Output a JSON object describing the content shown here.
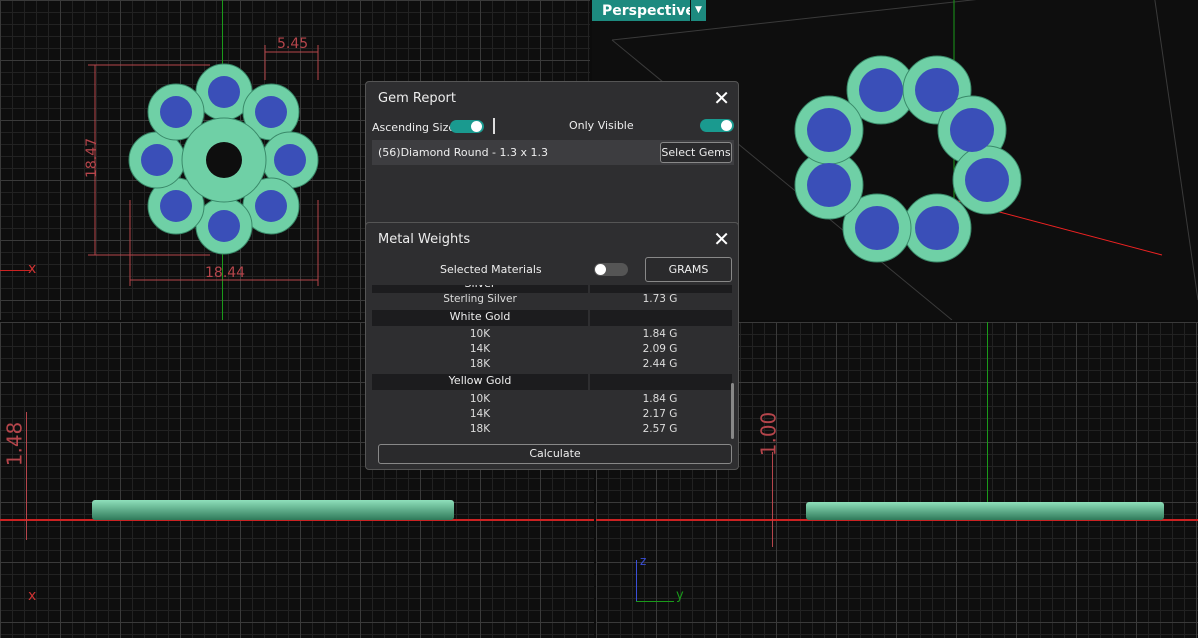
{
  "viewports": {
    "top": {
      "dims": [
        "5.45",
        "18.47",
        "18.44"
      ],
      "axis": "x"
    },
    "perspective": {
      "label": "Perspective",
      "dropdown_icon": "triangle-down-icon"
    },
    "front": {
      "dims": [
        "1.48"
      ],
      "axis": "x"
    },
    "right": {
      "dims": [
        "1.00"
      ],
      "axis_z": "z",
      "axis_y": "y"
    }
  },
  "gem_report": {
    "title": "Gem Report",
    "ascending_label": "Ascending Size",
    "ascending_on": true,
    "only_visible_label": "Only Visible",
    "only_visible_on": true,
    "gem_row": "(56)Diamond Round - 1.3 x 1.3",
    "select_button": "Select Gems"
  },
  "metal_weights": {
    "title": "Metal Weights",
    "selected_materials_label": "Selected Materials",
    "selected_materials_on": false,
    "units_button": "GRAMS",
    "rows": [
      {
        "header": true,
        "name": "Silver",
        "value": ""
      },
      {
        "name": "Sterling Silver",
        "value": "1.73 G"
      },
      {
        "header": true,
        "name": "White Gold",
        "value": ""
      },
      {
        "name": "10K",
        "value": "1.84 G"
      },
      {
        "name": "14K",
        "value": "2.09 G"
      },
      {
        "name": "18K",
        "value": "2.44 G"
      },
      {
        "header": true,
        "name": "Yellow Gold",
        "value": ""
      },
      {
        "name": "10K",
        "value": "1.84 G"
      },
      {
        "name": "14K",
        "value": "2.17 G"
      },
      {
        "name": "18K",
        "value": "2.57 G"
      }
    ],
    "calculate_button": "Calculate"
  },
  "colors": {
    "accent": "#1a9a8f",
    "metal": "#5fc39a",
    "gem": "#3a4fb8",
    "dimension": "#b5454b"
  }
}
